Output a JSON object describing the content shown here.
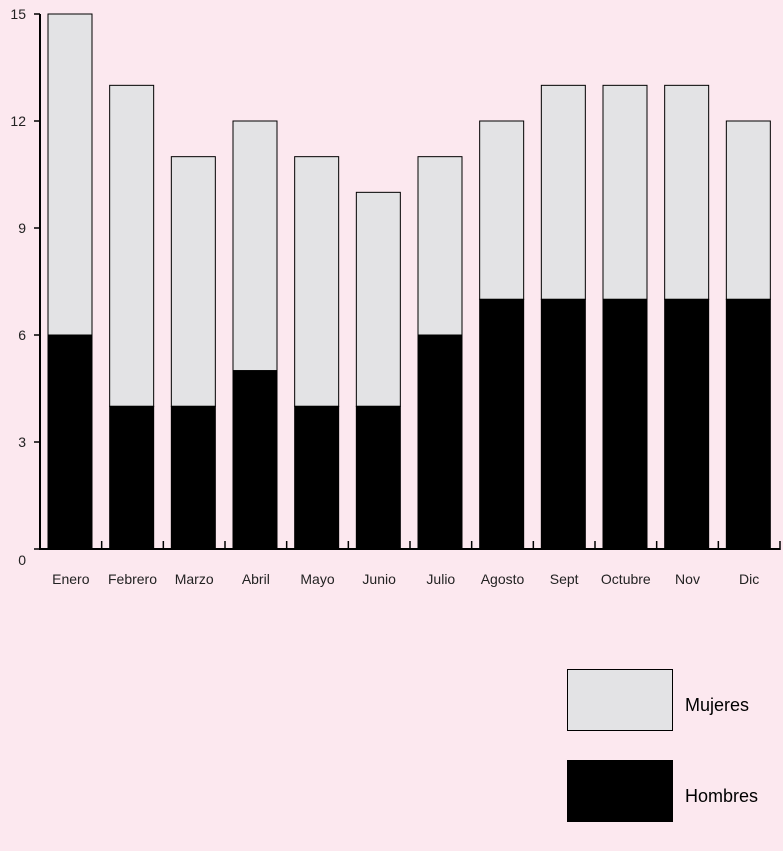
{
  "chart_data": {
    "type": "bar",
    "stacked": true,
    "categories": [
      "Enero",
      "Febrero",
      "Marzo",
      "Abril",
      "Mayo",
      "Junio",
      "Julio",
      "Agosto",
      "Sept",
      "Octubre",
      "Nov",
      "Dic"
    ],
    "series": [
      {
        "name": "Hombres",
        "values": [
          6,
          4,
          4,
          5,
          4,
          4,
          6,
          7,
          7,
          7,
          7,
          7
        ],
        "color": "#000000"
      },
      {
        "name": "Mujeres",
        "values": [
          9,
          9,
          7,
          7,
          7,
          6,
          5,
          5,
          6,
          6,
          6,
          5
        ],
        "color": "#e3e3e5"
      }
    ],
    "yticks": [
      "0",
      "3",
      "6",
      "9",
      "12",
      "15"
    ],
    "ylim": [
      0,
      15
    ],
    "grid": false,
    "legend_position": "bottom-right"
  },
  "legend": {
    "items": [
      {
        "label": "Mujeres",
        "color": "#e3e3e5"
      },
      {
        "label": "Hombres",
        "color": "#000000"
      }
    ]
  },
  "colors": {
    "background": "#fce8ef",
    "axis": "#000000"
  }
}
